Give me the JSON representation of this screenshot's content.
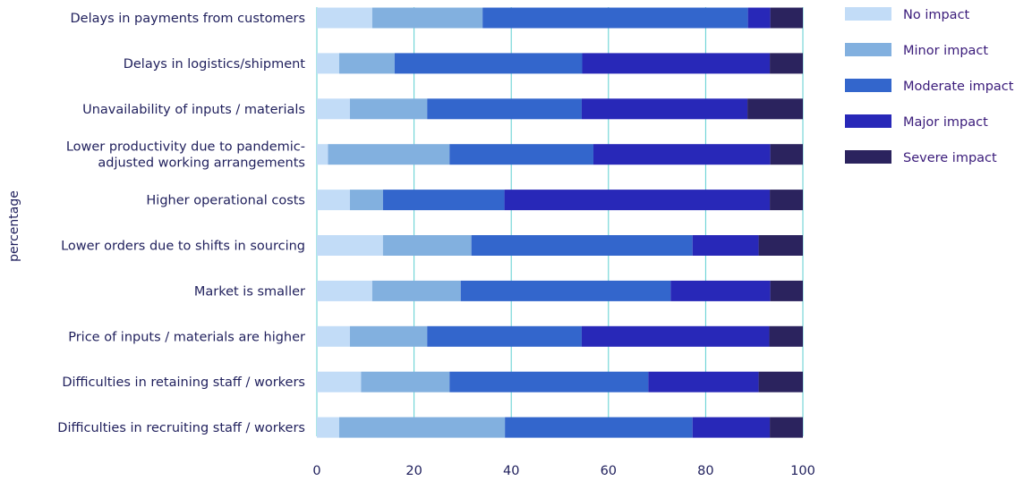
{
  "chart_data": {
    "type": "bar",
    "orientation": "horizontal",
    "stacked": true,
    "ylabel": "percentage",
    "xlabel": "",
    "xlim": [
      0,
      100
    ],
    "xticks": [
      "0",
      "20",
      "40",
      "60",
      "80",
      "100"
    ],
    "grid": true,
    "legend_position": "top-right",
    "categories": [
      "Delays in payments from customers",
      "Delays in logistics/shipment",
      "Unavailability of inputs / materials",
      "Lower productivity due to pandemic-adjusted working arrangements",
      "Higher operational costs",
      "Lower orders due to shifts in sourcing",
      "Market is smaller",
      "Price of inputs / materials are higher",
      "Difficulties in retaining staff / workers",
      "Difficulties in recruiting staff / workers"
    ],
    "category_lines": [
      [
        "Delays in payments from customers"
      ],
      [
        "Delays in logistics/shipment"
      ],
      [
        "Unavailability of inputs / materials"
      ],
      [
        "Lower productivity due to pandemic-",
        "adjusted working arrangements"
      ],
      [
        "Higher operational costs"
      ],
      [
        "Lower orders due to shifts in sourcing"
      ],
      [
        "Market is smaller"
      ],
      [
        "Price of inputs / materials are higher"
      ],
      [
        "Difficulties in retaining staff / workers"
      ],
      [
        "Difficulties in recruiting staff / workers"
      ]
    ],
    "series": [
      {
        "name": "No impact",
        "color": "#c2dcf7",
        "values": [
          11.4,
          4.6,
          6.8,
          2.3,
          6.8,
          13.6,
          11.4,
          6.8,
          9.1,
          4.6
        ]
      },
      {
        "name": "Minor impact",
        "color": "#82b0df",
        "values": [
          22.7,
          11.4,
          15.9,
          25.0,
          6.8,
          18.2,
          18.2,
          15.9,
          18.2,
          34.1
        ]
      },
      {
        "name": "Moderate impact",
        "color": "#3366cc",
        "values": [
          54.6,
          38.6,
          31.8,
          29.6,
          25.0,
          45.5,
          43.2,
          31.8,
          40.9,
          38.6
        ]
      },
      {
        "name": "Major impact",
        "color": "#2828b8",
        "values": [
          4.6,
          38.6,
          34.1,
          36.4,
          54.6,
          13.6,
          20.5,
          38.6,
          22.7,
          15.9
        ]
      },
      {
        "name": "Severe impact",
        "color": "#2b235e",
        "values": [
          6.7,
          6.8,
          11.4,
          6.7,
          6.8,
          9.1,
          6.7,
          6.9,
          9.1,
          6.8
        ]
      }
    ]
  }
}
